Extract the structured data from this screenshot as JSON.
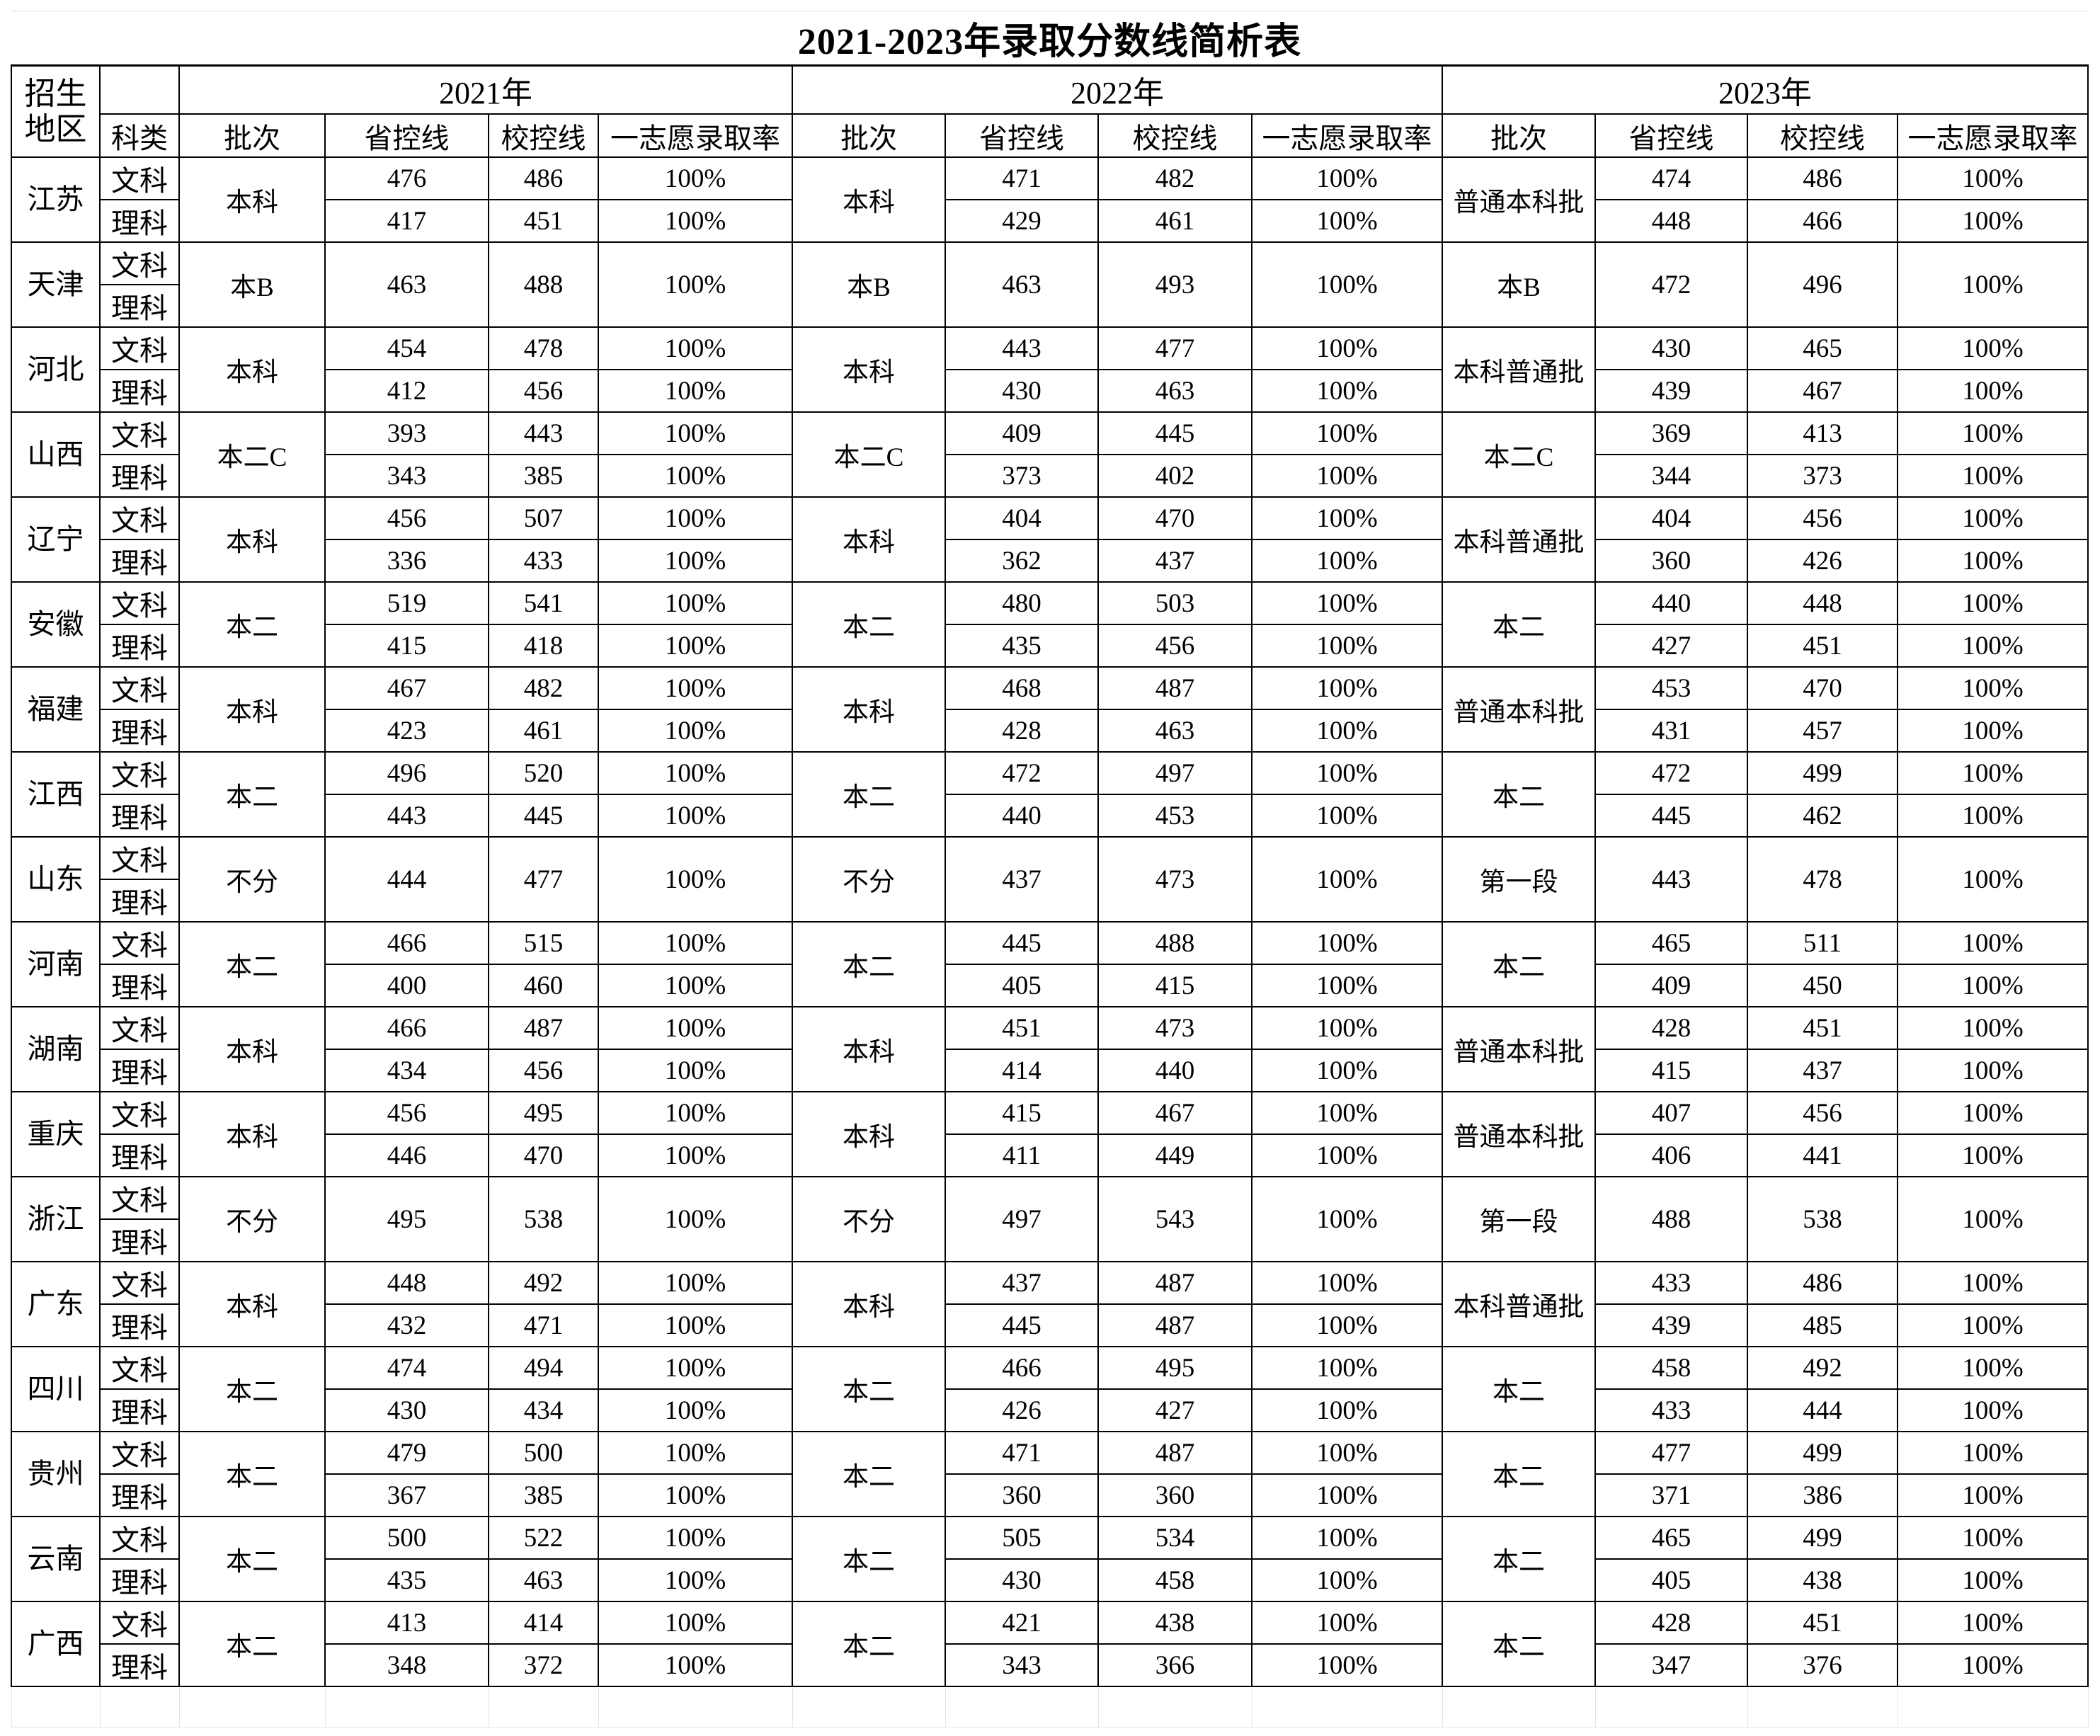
{
  "title": "2021-2023年录取分数线简析表",
  "header": {
    "region": "招生\n地区",
    "region_line1": "招生",
    "region_line2": "地区",
    "subject": "科类",
    "years": [
      "2021年",
      "2022年",
      "2023年"
    ],
    "columns": [
      "批次",
      "省控线",
      "校控线",
      "一志愿录取率"
    ]
  },
  "subjects": [
    "文科",
    "理科"
  ],
  "provinces": [
    {
      "name": "江苏",
      "years": [
        {
          "batch": "本科",
          "scores": [
            [
              "476",
              "486",
              "100%"
            ],
            [
              "417",
              "451",
              "100%"
            ]
          ]
        },
        {
          "batch": "本科",
          "scores": [
            [
              "471",
              "482",
              "100%"
            ],
            [
              "429",
              "461",
              "100%"
            ]
          ]
        },
        {
          "batch": "普通本科批",
          "scores": [
            [
              "474",
              "486",
              "100%"
            ],
            [
              "448",
              "466",
              "100%"
            ]
          ]
        }
      ]
    },
    {
      "name": "天津",
      "years": [
        {
          "batch": "本B",
          "scores": [
            [
              "463",
              "488",
              "100%"
            ]
          ]
        },
        {
          "batch": "本B",
          "scores": [
            [
              "463",
              "493",
              "100%"
            ]
          ]
        },
        {
          "batch": "本B",
          "scores": [
            [
              "472",
              "496",
              "100%"
            ]
          ]
        }
      ]
    },
    {
      "name": "河北",
      "years": [
        {
          "batch": "本科",
          "scores": [
            [
              "454",
              "478",
              "100%"
            ],
            [
              "412",
              "456",
              "100%"
            ]
          ]
        },
        {
          "batch": "本科",
          "scores": [
            [
              "443",
              "477",
              "100%"
            ],
            [
              "430",
              "463",
              "100%"
            ]
          ]
        },
        {
          "batch": "本科普通批",
          "scores": [
            [
              "430",
              "465",
              "100%"
            ],
            [
              "439",
              "467",
              "100%"
            ]
          ]
        }
      ]
    },
    {
      "name": "山西",
      "years": [
        {
          "batch": "本二C",
          "scores": [
            [
              "393",
              "443",
              "100%"
            ],
            [
              "343",
              "385",
              "100%"
            ]
          ]
        },
        {
          "batch": "本二C",
          "scores": [
            [
              "409",
              "445",
              "100%"
            ],
            [
              "373",
              "402",
              "100%"
            ]
          ]
        },
        {
          "batch": "本二C",
          "scores": [
            [
              "369",
              "413",
              "100%"
            ],
            [
              "344",
              "373",
              "100%"
            ]
          ]
        }
      ]
    },
    {
      "name": "辽宁",
      "years": [
        {
          "batch": "本科",
          "scores": [
            [
              "456",
              "507",
              "100%"
            ],
            [
              "336",
              "433",
              "100%"
            ]
          ]
        },
        {
          "batch": "本科",
          "scores": [
            [
              "404",
              "470",
              "100%"
            ],
            [
              "362",
              "437",
              "100%"
            ]
          ]
        },
        {
          "batch": "本科普通批",
          "scores": [
            [
              "404",
              "456",
              "100%"
            ],
            [
              "360",
              "426",
              "100%"
            ]
          ]
        }
      ]
    },
    {
      "name": "安徽",
      "years": [
        {
          "batch": "本二",
          "scores": [
            [
              "519",
              "541",
              "100%"
            ],
            [
              "415",
              "418",
              "100%"
            ]
          ]
        },
        {
          "batch": "本二",
          "scores": [
            [
              "480",
              "503",
              "100%"
            ],
            [
              "435",
              "456",
              "100%"
            ]
          ]
        },
        {
          "batch": "本二",
          "scores": [
            [
              "440",
              "448",
              "100%"
            ],
            [
              "427",
              "451",
              "100%"
            ]
          ]
        }
      ]
    },
    {
      "name": "福建",
      "years": [
        {
          "batch": "本科",
          "scores": [
            [
              "467",
              "482",
              "100%"
            ],
            [
              "423",
              "461",
              "100%"
            ]
          ]
        },
        {
          "batch": "本科",
          "scores": [
            [
              "468",
              "487",
              "100%"
            ],
            [
              "428",
              "463",
              "100%"
            ]
          ]
        },
        {
          "batch": "普通本科批",
          "scores": [
            [
              "453",
              "470",
              "100%"
            ],
            [
              "431",
              "457",
              "100%"
            ]
          ]
        }
      ]
    },
    {
      "name": "江西",
      "years": [
        {
          "batch": "本二",
          "scores": [
            [
              "496",
              "520",
              "100%"
            ],
            [
              "443",
              "445",
              "100%"
            ]
          ]
        },
        {
          "batch": "本二",
          "scores": [
            [
              "472",
              "497",
              "100%"
            ],
            [
              "440",
              "453",
              "100%"
            ]
          ]
        },
        {
          "batch": "本二",
          "scores": [
            [
              "472",
              "499",
              "100%"
            ],
            [
              "445",
              "462",
              "100%"
            ]
          ]
        }
      ]
    },
    {
      "name": "山东",
      "years": [
        {
          "batch": "不分",
          "scores": [
            [
              "444",
              "477",
              "100%"
            ]
          ]
        },
        {
          "batch": "不分",
          "scores": [
            [
              "437",
              "473",
              "100%"
            ]
          ]
        },
        {
          "batch": "第一段",
          "scores": [
            [
              "443",
              "478",
              "100%"
            ]
          ]
        }
      ]
    },
    {
      "name": "河南",
      "years": [
        {
          "batch": "本二",
          "scores": [
            [
              "466",
              "515",
              "100%"
            ],
            [
              "400",
              "460",
              "100%"
            ]
          ]
        },
        {
          "batch": "本二",
          "scores": [
            [
              "445",
              "488",
              "100%"
            ],
            [
              "405",
              "415",
              "100%"
            ]
          ]
        },
        {
          "batch": "本二",
          "scores": [
            [
              "465",
              "511",
              "100%"
            ],
            [
              "409",
              "450",
              "100%"
            ]
          ]
        }
      ]
    },
    {
      "name": "湖南",
      "years": [
        {
          "batch": "本科",
          "scores": [
            [
              "466",
              "487",
              "100%"
            ],
            [
              "434",
              "456",
              "100%"
            ]
          ]
        },
        {
          "batch": "本科",
          "scores": [
            [
              "451",
              "473",
              "100%"
            ],
            [
              "414",
              "440",
              "100%"
            ]
          ]
        },
        {
          "batch": "普通本科批",
          "scores": [
            [
              "428",
              "451",
              "100%"
            ],
            [
              "415",
              "437",
              "100%"
            ]
          ]
        }
      ]
    },
    {
      "name": "重庆",
      "years": [
        {
          "batch": "本科",
          "scores": [
            [
              "456",
              "495",
              "100%"
            ],
            [
              "446",
              "470",
              "100%"
            ]
          ]
        },
        {
          "batch": "本科",
          "scores": [
            [
              "415",
              "467",
              "100%"
            ],
            [
              "411",
              "449",
              "100%"
            ]
          ]
        },
        {
          "batch": "普通本科批",
          "scores": [
            [
              "407",
              "456",
              "100%"
            ],
            [
              "406",
              "441",
              "100%"
            ]
          ]
        }
      ]
    },
    {
      "name": "浙江",
      "years": [
        {
          "batch": "不分",
          "scores": [
            [
              "495",
              "538",
              "100%"
            ]
          ]
        },
        {
          "batch": "不分",
          "scores": [
            [
              "497",
              "543",
              "100%"
            ]
          ]
        },
        {
          "batch": "第一段",
          "scores": [
            [
              "488",
              "538",
              "100%"
            ]
          ]
        }
      ]
    },
    {
      "name": "广东",
      "years": [
        {
          "batch": "本科",
          "scores": [
            [
              "448",
              "492",
              "100%"
            ],
            [
              "432",
              "471",
              "100%"
            ]
          ]
        },
        {
          "batch": "本科",
          "scores": [
            [
              "437",
              "487",
              "100%"
            ],
            [
              "445",
              "487",
              "100%"
            ]
          ]
        },
        {
          "batch": "本科普通批",
          "scores": [
            [
              "433",
              "486",
              "100%"
            ],
            [
              "439",
              "485",
              "100%"
            ]
          ]
        }
      ]
    },
    {
      "name": "四川",
      "years": [
        {
          "batch": "本二",
          "scores": [
            [
              "474",
              "494",
              "100%"
            ],
            [
              "430",
              "434",
              "100%"
            ]
          ]
        },
        {
          "batch": "本二",
          "scores": [
            [
              "466",
              "495",
              "100%"
            ],
            [
              "426",
              "427",
              "100%"
            ]
          ]
        },
        {
          "batch": "本二",
          "scores": [
            [
              "458",
              "492",
              "100%"
            ],
            [
              "433",
              "444",
              "100%"
            ]
          ]
        }
      ]
    },
    {
      "name": "贵州",
      "years": [
        {
          "batch": "本二",
          "scores": [
            [
              "479",
              "500",
              "100%"
            ],
            [
              "367",
              "385",
              "100%"
            ]
          ]
        },
        {
          "batch": "本二",
          "scores": [
            [
              "471",
              "487",
              "100%"
            ],
            [
              "360",
              "360",
              "100%"
            ]
          ]
        },
        {
          "batch": "本二",
          "scores": [
            [
              "477",
              "499",
              "100%"
            ],
            [
              "371",
              "386",
              "100%"
            ]
          ]
        }
      ]
    },
    {
      "name": "云南",
      "years": [
        {
          "batch": "本二",
          "scores": [
            [
              "500",
              "522",
              "100%"
            ],
            [
              "435",
              "463",
              "100%"
            ]
          ]
        },
        {
          "batch": "本二",
          "scores": [
            [
              "505",
              "534",
              "100%"
            ],
            [
              "430",
              "458",
              "100%"
            ]
          ]
        },
        {
          "batch": "本二",
          "scores": [
            [
              "465",
              "499",
              "100%"
            ],
            [
              "405",
              "438",
              "100%"
            ]
          ]
        }
      ]
    },
    {
      "name": "广西",
      "years": [
        {
          "batch": "本二",
          "scores": [
            [
              "413",
              "414",
              "100%"
            ],
            [
              "348",
              "372",
              "100%"
            ]
          ]
        },
        {
          "batch": "本二",
          "scores": [
            [
              "421",
              "438",
              "100%"
            ],
            [
              "343",
              "366",
              "100%"
            ]
          ]
        },
        {
          "batch": "本二",
          "scores": [
            [
              "428",
              "451",
              "100%"
            ],
            [
              "347",
              "376",
              "100%"
            ]
          ]
        }
      ]
    }
  ]
}
